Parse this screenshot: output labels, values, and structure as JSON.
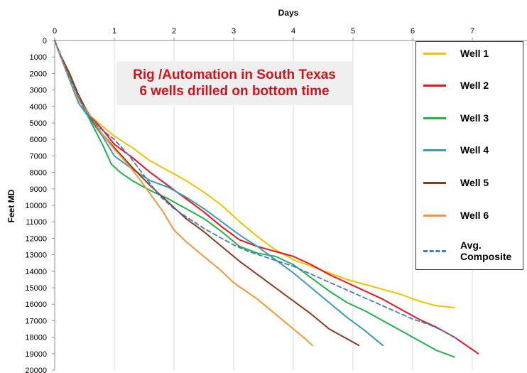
{
  "chart_data": {
    "type": "line",
    "title": "",
    "xlabel": "Days",
    "ylabel": "Feet MD",
    "xlim": [
      0,
      8
    ],
    "ylim": [
      0,
      20000
    ],
    "x_ticks": [
      "0",
      "1",
      "2",
      "3",
      "4",
      "5",
      "6",
      "7"
    ],
    "y_ticks": [
      "0",
      "1000",
      "2000",
      "3000",
      "4000",
      "5000",
      "6000",
      "7000",
      "8000",
      "9000",
      "10000",
      "11000",
      "12000",
      "13000",
      "14000",
      "15000",
      "16000",
      "17000",
      "18000",
      "19000",
      "20000"
    ],
    "y_inverted": true,
    "x_axis_position": "top",
    "grid": "vertical",
    "legend_position": "right",
    "annotation": [
      "Rig /Automation  in South Texas",
      "6 wells drilled on bottom time"
    ],
    "series": [
      {
        "name": "Well 1",
        "color": "#f5c000",
        "dashed": false,
        "x": [
          0,
          0.1,
          0.25,
          0.4,
          0.6,
          0.8,
          1.0,
          1.3,
          1.6,
          1.9,
          2.2,
          2.5,
          2.8,
          3.1,
          3.4,
          3.7,
          4.0,
          4.3,
          4.6,
          4.9,
          5.2,
          5.5,
          5.8,
          6.1,
          6.4,
          6.7
        ],
        "y": [
          0,
          1000,
          2200,
          3500,
          4600,
          5200,
          5800,
          6500,
          7300,
          7900,
          8500,
          9200,
          10000,
          11000,
          11900,
          12700,
          13300,
          13700,
          14100,
          14500,
          14800,
          15100,
          15400,
          15800,
          16100,
          16200
        ]
      },
      {
        "name": "Well 2",
        "color": "#e8141c",
        "dashed": false,
        "x": [
          0,
          0.1,
          0.25,
          0.4,
          0.6,
          0.8,
          1.0,
          1.3,
          1.6,
          1.9,
          2.2,
          2.5,
          2.8,
          3.1,
          3.4,
          3.7,
          4.0,
          4.3,
          4.6,
          4.9,
          5.2,
          5.5,
          5.8,
          6.1,
          6.4,
          6.7,
          7.1
        ],
        "y": [
          0,
          1000,
          2200,
          3500,
          4600,
          5400,
          6300,
          7100,
          8000,
          8800,
          9600,
          10400,
          11300,
          12100,
          12500,
          12800,
          13100,
          13600,
          14200,
          14700,
          15200,
          15700,
          16300,
          16900,
          17400,
          18000,
          19000
        ]
      },
      {
        "name": "Well 3",
        "color": "#21b24a",
        "dashed": false,
        "x": [
          0,
          0.1,
          0.25,
          0.4,
          0.6,
          0.8,
          0.95,
          1.1,
          1.3,
          1.6,
          1.9,
          2.2,
          2.5,
          2.8,
          3.1,
          3.4,
          3.7,
          4.0,
          4.3,
          4.6,
          4.9,
          5.2,
          5.5,
          5.8,
          6.1,
          6.4,
          6.7
        ],
        "y": [
          0,
          1000,
          2200,
          3500,
          4900,
          6300,
          7500,
          8000,
          8500,
          9100,
          9600,
          10200,
          10800,
          11600,
          12500,
          12900,
          13100,
          13600,
          14400,
          15200,
          15900,
          16400,
          17000,
          17600,
          18200,
          18800,
          19200
        ]
      },
      {
        "name": "Well 4",
        "color": "#3b9bb4",
        "dashed": false,
        "x": [
          0,
          0.1,
          0.25,
          0.4,
          0.6,
          0.8,
          1.0,
          1.3,
          1.6,
          1.9,
          2.2,
          2.5,
          2.8,
          3.1,
          3.4,
          3.7,
          4.0,
          4.3,
          4.6,
          4.9,
          5.2,
          5.5
        ],
        "y": [
          0,
          1000,
          2400,
          3800,
          4800,
          5800,
          7000,
          7800,
          8500,
          8900,
          9500,
          10200,
          11000,
          11800,
          12500,
          13300,
          14100,
          15000,
          15900,
          16800,
          17600,
          18500
        ]
      },
      {
        "name": "Well 5",
        "color": "#8b3a1c",
        "dashed": false,
        "x": [
          0,
          0.1,
          0.25,
          0.4,
          0.6,
          0.8,
          1.0,
          1.3,
          1.6,
          1.9,
          2.2,
          2.5,
          2.8,
          3.1,
          3.4,
          3.7,
          4.0,
          4.3,
          4.6,
          4.9,
          5.1
        ],
        "y": [
          0,
          900,
          2000,
          3300,
          4700,
          5700,
          6500,
          7700,
          8800,
          9800,
          10800,
          11600,
          12500,
          13400,
          14200,
          15000,
          15800,
          16600,
          17500,
          18100,
          18500
        ]
      },
      {
        "name": "Well 6",
        "color": "#f7953a",
        "dashed": false,
        "x": [
          0,
          0.1,
          0.25,
          0.4,
          0.6,
          0.8,
          1.0,
          1.2,
          1.4,
          1.6,
          1.8,
          2.0,
          2.2,
          2.4,
          2.6,
          2.8,
          3.0,
          3.2,
          3.4,
          3.6,
          3.8,
          4.0,
          4.2,
          4.32
        ],
        "y": [
          0,
          1000,
          2300,
          3600,
          4600,
          5700,
          6600,
          7400,
          8300,
          9300,
          10300,
          11500,
          12200,
          12800,
          13400,
          14000,
          14700,
          15200,
          15700,
          16300,
          16900,
          17500,
          18100,
          18500
        ]
      },
      {
        "name": "Avg. Composite",
        "color": "#4a78c4",
        "dashed": true,
        "x": [
          0,
          0.25,
          0.5,
          0.75,
          1.0,
          1.25,
          1.5,
          1.75,
          2.0,
          2.25,
          2.5,
          2.75,
          3.0,
          3.25,
          3.5,
          3.75,
          4.0,
          4.25,
          4.5,
          4.75,
          5.0,
          5.25,
          5.5,
          5.75,
          6.0,
          6.25,
          6.5,
          6.75
        ],
        "y": [
          0,
          2300,
          4200,
          5300,
          6000,
          7000,
          8200,
          9400,
          10200,
          10800,
          11400,
          11900,
          12400,
          12800,
          13100,
          13400,
          13700,
          14100,
          14500,
          14900,
          15300,
          15700,
          16100,
          16500,
          16900,
          17200,
          17600,
          18100
        ]
      }
    ]
  }
}
